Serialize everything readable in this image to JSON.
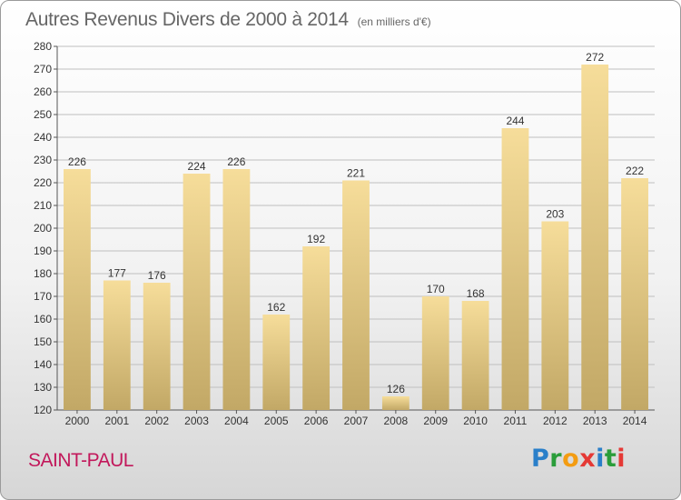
{
  "title": "Autres Revenus Divers de 2000 à 2014",
  "unit": "(en milliers d'€)",
  "location": "SAINT-PAUL",
  "brand": {
    "letters": [
      "P",
      "r",
      "o",
      "x",
      "i",
      "t",
      "i"
    ],
    "colors": [
      "#2a7fc9",
      "#2a9d3a",
      "#f39c12",
      "#e53935",
      "#2a7fc9",
      "#2a9d3a",
      "#e53935"
    ]
  },
  "chart_data": {
    "type": "bar",
    "title": "Autres Revenus Divers de 2000 à 2014",
    "categories": [
      "2000",
      "2001",
      "2002",
      "2003",
      "2004",
      "2005",
      "2006",
      "2007",
      "2008",
      "2009",
      "2010",
      "2011",
      "2012",
      "2013",
      "2014"
    ],
    "values": [
      226,
      177,
      176,
      224,
      226,
      162,
      192,
      221,
      126,
      170,
      168,
      244,
      203,
      272,
      222
    ],
    "ylim": [
      120,
      280
    ],
    "yticks": [
      120,
      130,
      140,
      150,
      160,
      170,
      180,
      190,
      200,
      210,
      220,
      230,
      240,
      250,
      260,
      270,
      280
    ],
    "grid": true,
    "colors": {
      "bar_top": "#f6dd9a",
      "bar_bottom": "#c2a866",
      "axis": "#555555",
      "grid": "#bfbfbf",
      "text": "#333333"
    }
  }
}
